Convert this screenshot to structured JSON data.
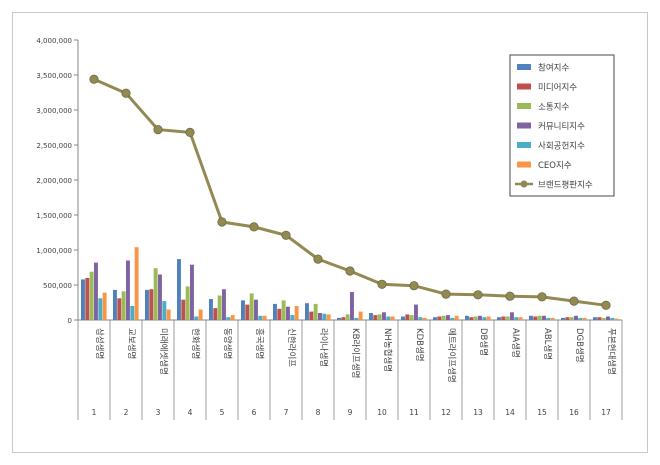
{
  "chart_data": {
    "type": "bar",
    "ylim": [
      0,
      4000000
    ],
    "yticks": [
      "0",
      "500,000",
      "1,000,000",
      "1,500,000",
      "2,000,000",
      "2,500,000",
      "3,000,000",
      "3,500,000",
      "4,000,000"
    ],
    "ytick_values": [
      0,
      500000,
      1000000,
      1500000,
      2000000,
      2500000,
      3000000,
      3500000,
      4000000
    ],
    "categories": [
      "삼성생명",
      "교보생명",
      "미래에셋생명",
      "한화생명",
      "동양생명",
      "흥국생명",
      "신한라이프",
      "라이나생명",
      "KB라이프생명",
      "NH농협생명",
      "KDB생명",
      "메트라이프생명",
      "DB생명",
      "AIA생명",
      "ABL생명",
      "DGB생명",
      "푸본현대생명"
    ],
    "ranks": [
      "1",
      "2",
      "3",
      "4",
      "5",
      "6",
      "7",
      "8",
      "9",
      "10",
      "11",
      "12",
      "13",
      "14",
      "15",
      "16",
      "17"
    ],
    "series": [
      {
        "name": "참여지수",
        "color": "#4f81bd",
        "values": [
          580000,
          430000,
          430000,
          870000,
          300000,
          280000,
          230000,
          240000,
          30000,
          100000,
          50000,
          40000,
          60000,
          40000,
          60000,
          30000,
          40000
        ]
      },
      {
        "name": "미디어지수",
        "color": "#c0504d",
        "values": [
          600000,
          310000,
          440000,
          290000,
          170000,
          220000,
          160000,
          120000,
          40000,
          70000,
          80000,
          50000,
          40000,
          50000,
          50000,
          40000,
          40000
        ]
      },
      {
        "name": "소통지수",
        "color": "#9bbb59",
        "values": [
          690000,
          410000,
          740000,
          480000,
          350000,
          380000,
          280000,
          230000,
          80000,
          80000,
          70000,
          60000,
          50000,
          50000,
          60000,
          40000,
          30000
        ]
      },
      {
        "name": "커뮤니티지수",
        "color": "#8064a2",
        "values": [
          820000,
          850000,
          650000,
          790000,
          440000,
          290000,
          190000,
          100000,
          400000,
          110000,
          220000,
          70000,
          60000,
          110000,
          60000,
          60000,
          50000
        ]
      },
      {
        "name": "사회공헌지수",
        "color": "#4bacc6",
        "values": [
          310000,
          200000,
          270000,
          50000,
          40000,
          60000,
          70000,
          90000,
          30000,
          50000,
          40000,
          30000,
          40000,
          40000,
          30000,
          30000,
          30000
        ]
      },
      {
        "name": "CEO지수",
        "color": "#f79646",
        "values": [
          390000,
          1040000,
          150000,
          150000,
          70000,
          60000,
          200000,
          80000,
          120000,
          50000,
          30000,
          60000,
          50000,
          40000,
          30000,
          30000,
          20000
        ]
      }
    ],
    "line_series": {
      "name": "브랜드평판지수",
      "color": "#938953",
      "values": [
        3440000,
        3240000,
        2720000,
        2680000,
        1400000,
        1330000,
        1210000,
        870000,
        700000,
        510000,
        490000,
        370000,
        360000,
        340000,
        330000,
        270000,
        210000
      ]
    },
    "legend_position": "top-right",
    "grid": false
  }
}
